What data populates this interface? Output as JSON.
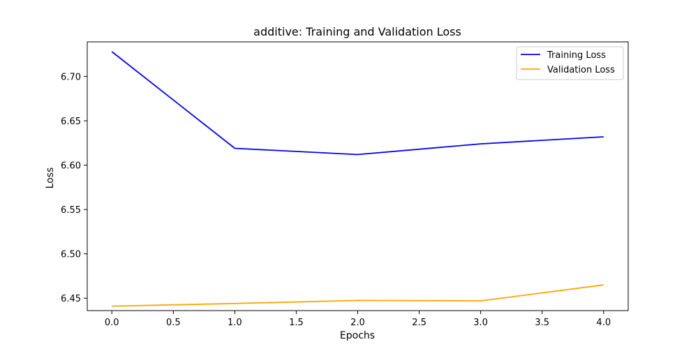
{
  "chart_data": {
    "type": "line",
    "title": "additive: Training and Validation Loss",
    "xlabel": "Epochs",
    "ylabel": "Loss",
    "xlim": [
      -0.2,
      4.2
    ],
    "ylim": [
      6.436,
      6.739
    ],
    "x_ticks": [
      "0.0",
      "0.5",
      "1.0",
      "1.5",
      "2.0",
      "2.5",
      "3.0",
      "3.5",
      "4.0"
    ],
    "y_ticks": [
      "6.45",
      "6.50",
      "6.55",
      "6.60",
      "6.65",
      "6.70"
    ],
    "x": [
      0,
      1,
      2,
      3,
      4
    ],
    "series": [
      {
        "name": "Training Loss",
        "color": "#0000ff",
        "values": [
          6.728,
          6.619,
          6.612,
          6.624,
          6.632
        ]
      },
      {
        "name": "Validation Loss",
        "color": "#ffa500",
        "values": [
          6.441,
          6.444,
          6.4475,
          6.447,
          6.465
        ]
      }
    ],
    "grid": false,
    "legend_position": "top-right"
  }
}
